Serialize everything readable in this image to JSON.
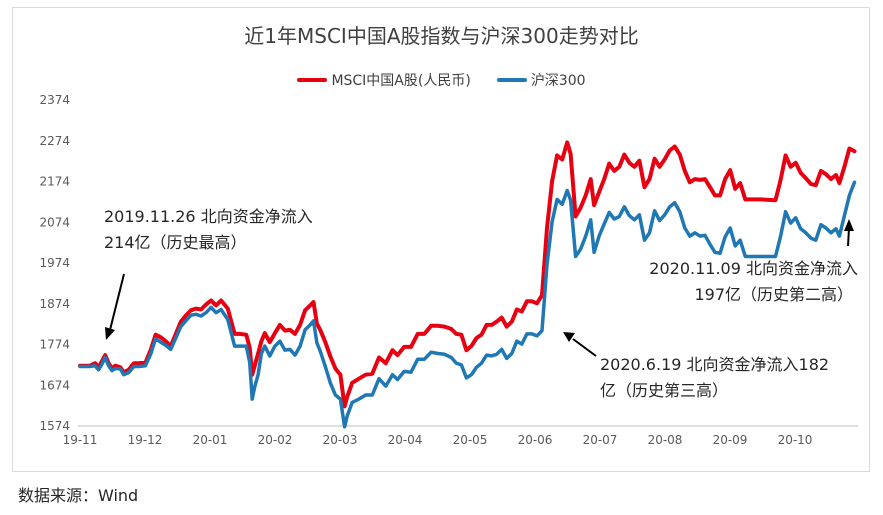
{
  "chart_data": {
    "type": "line",
    "title": "近1年MSCI中国A股指数与沪深300走势对比",
    "xlabel": "",
    "ylabel": "",
    "ylim": [
      1574,
      2374
    ],
    "yticks": [
      2374,
      2274,
      2174,
      2074,
      1974,
      1874,
      1774,
      1674,
      1574
    ],
    "xtick_labels": [
      "19-11",
      "19-12",
      "20-01",
      "20-02",
      "20-03",
      "20-04",
      "20-05",
      "20-06",
      "20-07",
      "20-08",
      "20-09",
      "20-10"
    ],
    "grid": false,
    "legend_position": "top",
    "colors": {
      "msci": "#e60012",
      "hs300": "#1f77b4"
    },
    "series": [
      {
        "name": "MSCI中国A股(人民币)",
        "anchors": [
          [
            0.0,
            1722
          ],
          [
            0.6,
            1722
          ],
          [
            0.9,
            1728
          ],
          [
            1.1,
            1718
          ],
          [
            1.3,
            1732
          ],
          [
            1.5,
            1748
          ],
          [
            1.7,
            1728
          ],
          [
            1.9,
            1715
          ],
          [
            2.1,
            1722
          ],
          [
            2.4,
            1718
          ],
          [
            2.6,
            1706
          ],
          [
            2.9,
            1712
          ],
          [
            3.2,
            1728
          ],
          [
            3.5,
            1728
          ],
          [
            3.9,
            1730
          ],
          [
            4.2,
            1760
          ],
          [
            4.5,
            1798
          ],
          [
            4.8,
            1792
          ],
          [
            5.1,
            1782
          ],
          [
            5.4,
            1770
          ],
          [
            5.7,
            1800
          ],
          [
            6.0,
            1830
          ],
          [
            6.3,
            1845
          ],
          [
            6.6,
            1858
          ],
          [
            6.9,
            1862
          ],
          [
            7.2,
            1860
          ],
          [
            7.5,
            1872
          ],
          [
            7.8,
            1882
          ],
          [
            8.1,
            1870
          ],
          [
            8.4,
            1882
          ],
          [
            8.8,
            1862
          ],
          [
            9.2,
            1800
          ],
          [
            9.5,
            1800
          ],
          [
            9.9,
            1798
          ],
          [
            10.1,
            1766
          ],
          [
            10.25,
            1700
          ],
          [
            10.4,
            1722
          ],
          [
            10.6,
            1752
          ],
          [
            10.8,
            1782
          ],
          [
            11.0,
            1802
          ],
          [
            11.3,
            1780
          ],
          [
            11.6,
            1802
          ],
          [
            11.9,
            1822
          ],
          [
            12.2,
            1808
          ],
          [
            12.5,
            1810
          ],
          [
            12.8,
            1800
          ],
          [
            13.1,
            1822
          ],
          [
            13.4,
            1858
          ],
          [
            13.7,
            1870
          ],
          [
            13.9,
            1878
          ],
          [
            14.1,
            1825
          ],
          [
            14.3,
            1810
          ],
          [
            14.6,
            1780
          ],
          [
            14.9,
            1745
          ],
          [
            15.2,
            1715
          ],
          [
            15.5,
            1700
          ],
          [
            15.75,
            1622
          ],
          [
            15.9,
            1645
          ],
          [
            16.2,
            1680
          ],
          [
            16.6,
            1690
          ],
          [
            17.0,
            1700
          ],
          [
            17.4,
            1702
          ],
          [
            17.8,
            1742
          ],
          [
            18.2,
            1728
          ],
          [
            18.6,
            1760
          ],
          [
            18.9,
            1748
          ],
          [
            19.3,
            1768
          ],
          [
            19.7,
            1768
          ],
          [
            20.1,
            1800
          ],
          [
            20.5,
            1800
          ],
          [
            20.9,
            1820
          ],
          [
            21.3,
            1820
          ],
          [
            21.7,
            1818
          ],
          [
            22.1,
            1812
          ],
          [
            22.4,
            1800
          ],
          [
            22.7,
            1798
          ],
          [
            23.0,
            1760
          ],
          [
            23.3,
            1770
          ],
          [
            23.6,
            1790
          ],
          [
            23.9,
            1798
          ],
          [
            24.2,
            1822
          ],
          [
            24.5,
            1822
          ],
          [
            24.8,
            1830
          ],
          [
            25.1,
            1840
          ],
          [
            25.4,
            1818
          ],
          [
            25.7,
            1830
          ],
          [
            26.0,
            1860
          ],
          [
            26.3,
            1855
          ],
          [
            26.6,
            1880
          ],
          [
            26.9,
            1880
          ],
          [
            27.2,
            1875
          ],
          [
            27.5,
            1895
          ],
          [
            27.8,
            2060
          ],
          [
            28.1,
            2175
          ],
          [
            28.4,
            2238
          ],
          [
            28.7,
            2228
          ],
          [
            29.0,
            2270
          ],
          [
            29.2,
            2242
          ],
          [
            29.5,
            2088
          ],
          [
            29.8,
            2110
          ],
          [
            30.1,
            2140
          ],
          [
            30.4,
            2180
          ],
          [
            30.6,
            2116
          ],
          [
            30.9,
            2148
          ],
          [
            31.2,
            2180
          ],
          [
            31.5,
            2218
          ],
          [
            31.8,
            2200
          ],
          [
            32.1,
            2210
          ],
          [
            32.4,
            2240
          ],
          [
            32.7,
            2220
          ],
          [
            33.0,
            2210
          ],
          [
            33.3,
            2225
          ],
          [
            33.6,
            2160
          ],
          [
            33.9,
            2180
          ],
          [
            34.2,
            2230
          ],
          [
            34.5,
            2210
          ],
          [
            34.8,
            2228
          ],
          [
            35.1,
            2250
          ],
          [
            35.4,
            2260
          ],
          [
            35.7,
            2240
          ],
          [
            36.0,
            2200
          ],
          [
            36.3,
            2172
          ],
          [
            36.6,
            2180
          ],
          [
            36.9,
            2178
          ],
          [
            37.2,
            2180
          ],
          [
            37.5,
            2160
          ],
          [
            37.8,
            2140
          ],
          [
            38.1,
            2140
          ],
          [
            38.4,
            2180
          ],
          [
            38.7,
            2202
          ],
          [
            39.0,
            2156
          ],
          [
            39.3,
            2170
          ],
          [
            39.6,
            2130
          ],
          [
            40.5,
            2130
          ],
          [
            41.4,
            2128
          ],
          [
            41.7,
            2178
          ],
          [
            42.0,
            2238
          ],
          [
            42.3,
            2210
          ],
          [
            42.6,
            2220
          ],
          [
            42.9,
            2195
          ],
          [
            43.2,
            2182
          ],
          [
            43.5,
            2168
          ],
          [
            43.8,
            2165
          ],
          [
            44.1,
            2200
          ],
          [
            44.4,
            2192
          ],
          [
            44.7,
            2180
          ],
          [
            45.0,
            2190
          ],
          [
            45.2,
            2170
          ],
          [
            45.5,
            2210
          ],
          [
            45.8,
            2255
          ],
          [
            46.1,
            2248
          ]
        ]
      },
      {
        "name": "沪深300",
        "anchors": [
          [
            0.0,
            1720
          ],
          [
            0.6,
            1720
          ],
          [
            0.9,
            1722
          ],
          [
            1.1,
            1712
          ],
          [
            1.3,
            1725
          ],
          [
            1.5,
            1742
          ],
          [
            1.7,
            1722
          ],
          [
            1.9,
            1710
          ],
          [
            2.1,
            1715
          ],
          [
            2.4,
            1714
          ],
          [
            2.6,
            1700
          ],
          [
            2.9,
            1705
          ],
          [
            3.2,
            1720
          ],
          [
            3.5,
            1720
          ],
          [
            3.9,
            1722
          ],
          [
            4.2,
            1750
          ],
          [
            4.5,
            1788
          ],
          [
            4.8,
            1780
          ],
          [
            5.1,
            1772
          ],
          [
            5.4,
            1762
          ],
          [
            5.7,
            1790
          ],
          [
            6.0,
            1818
          ],
          [
            6.3,
            1832
          ],
          [
            6.6,
            1846
          ],
          [
            6.9,
            1848
          ],
          [
            7.2,
            1844
          ],
          [
            7.5,
            1852
          ],
          [
            7.8,
            1865
          ],
          [
            8.1,
            1852
          ],
          [
            8.4,
            1860
          ],
          [
            8.8,
            1835
          ],
          [
            9.2,
            1770
          ],
          [
            9.5,
            1770
          ],
          [
            9.9,
            1770
          ],
          [
            10.1,
            1730
          ],
          [
            10.25,
            1640
          ],
          [
            10.4,
            1670
          ],
          [
            10.6,
            1700
          ],
          [
            10.8,
            1752
          ],
          [
            11.0,
            1770
          ],
          [
            11.3,
            1746
          ],
          [
            11.6,
            1770
          ],
          [
            11.9,
            1782
          ],
          [
            12.2,
            1760
          ],
          [
            12.5,
            1762
          ],
          [
            12.8,
            1748
          ],
          [
            13.1,
            1770
          ],
          [
            13.4,
            1810
          ],
          [
            13.7,
            1822
          ],
          [
            13.9,
            1832
          ],
          [
            14.1,
            1778
          ],
          [
            14.3,
            1758
          ],
          [
            14.6,
            1720
          ],
          [
            14.9,
            1680
          ],
          [
            15.2,
            1650
          ],
          [
            15.5,
            1640
          ],
          [
            15.75,
            1572
          ],
          [
            15.9,
            1598
          ],
          [
            16.2,
            1632
          ],
          [
            16.6,
            1640
          ],
          [
            17.0,
            1650
          ],
          [
            17.4,
            1650
          ],
          [
            17.8,
            1690
          ],
          [
            18.2,
            1672
          ],
          [
            18.6,
            1700
          ],
          [
            18.9,
            1688
          ],
          [
            19.3,
            1708
          ],
          [
            19.7,
            1706
          ],
          [
            20.1,
            1738
          ],
          [
            20.5,
            1738
          ],
          [
            20.9,
            1755
          ],
          [
            21.3,
            1752
          ],
          [
            21.7,
            1750
          ],
          [
            22.1,
            1742
          ],
          [
            22.4,
            1728
          ],
          [
            22.7,
            1724
          ],
          [
            23.0,
            1692
          ],
          [
            23.3,
            1700
          ],
          [
            23.6,
            1718
          ],
          [
            23.9,
            1728
          ],
          [
            24.2,
            1748
          ],
          [
            24.5,
            1746
          ],
          [
            24.8,
            1750
          ],
          [
            25.1,
            1762
          ],
          [
            25.4,
            1740
          ],
          [
            25.7,
            1752
          ],
          [
            26.0,
            1782
          ],
          [
            26.3,
            1775
          ],
          [
            26.6,
            1800
          ],
          [
            26.9,
            1800
          ],
          [
            27.2,
            1795
          ],
          [
            27.5,
            1808
          ],
          [
            27.8,
            1970
          ],
          [
            28.1,
            2075
          ],
          [
            28.4,
            2130
          ],
          [
            28.7,
            2118
          ],
          [
            29.0,
            2152
          ],
          [
            29.2,
            2128
          ],
          [
            29.5,
            1990
          ],
          [
            29.8,
            2008
          ],
          [
            30.1,
            2040
          ],
          [
            30.4,
            2080
          ],
          [
            30.6,
            2000
          ],
          [
            30.9,
            2040
          ],
          [
            31.2,
            2070
          ],
          [
            31.5,
            2098
          ],
          [
            31.8,
            2082
          ],
          [
            32.1,
            2088
          ],
          [
            32.4,
            2112
          ],
          [
            32.7,
            2090
          ],
          [
            33.0,
            2080
          ],
          [
            33.3,
            2092
          ],
          [
            33.6,
            2030
          ],
          [
            33.9,
            2048
          ],
          [
            34.2,
            2102
          ],
          [
            34.5,
            2078
          ],
          [
            34.8,
            2092
          ],
          [
            35.1,
            2112
          ],
          [
            35.4,
            2122
          ],
          [
            35.7,
            2100
          ],
          [
            36.0,
            2060
          ],
          [
            36.3,
            2040
          ],
          [
            36.6,
            2048
          ],
          [
            36.9,
            2040
          ],
          [
            37.2,
            2042
          ],
          [
            37.5,
            2020
          ],
          [
            37.8,
            2000
          ],
          [
            38.1,
            1998
          ],
          [
            38.4,
            2038
          ],
          [
            38.7,
            2060
          ],
          [
            39.0,
            2016
          ],
          [
            39.3,
            2030
          ],
          [
            39.6,
            1990
          ],
          [
            40.5,
            1990
          ],
          [
            41.4,
            1990
          ],
          [
            41.7,
            2040
          ],
          [
            42.0,
            2100
          ],
          [
            42.3,
            2072
          ],
          [
            42.6,
            2085
          ],
          [
            42.9,
            2058
          ],
          [
            43.2,
            2048
          ],
          [
            43.5,
            2035
          ],
          [
            43.8,
            2030
          ],
          [
            44.1,
            2068
          ],
          [
            44.4,
            2060
          ],
          [
            44.7,
            2048
          ],
          [
            45.0,
            2058
          ],
          [
            45.2,
            2040
          ],
          [
            45.5,
            2090
          ],
          [
            45.8,
            2140
          ],
          [
            46.1,
            2172
          ]
        ]
      }
    ],
    "annotations": [
      {
        "lines": [
          "2019.11.26 北向资金净流入",
          "214亿（历史最高）"
        ]
      },
      {
        "lines": [
          "2020.11.09 北向资金净流入",
          "197亿（历史第二高）"
        ]
      },
      {
        "lines": [
          "2020.6.19 北向资金净流入182",
          "亿（历史第三高）"
        ]
      }
    ]
  },
  "source": "数据来源：Wind"
}
